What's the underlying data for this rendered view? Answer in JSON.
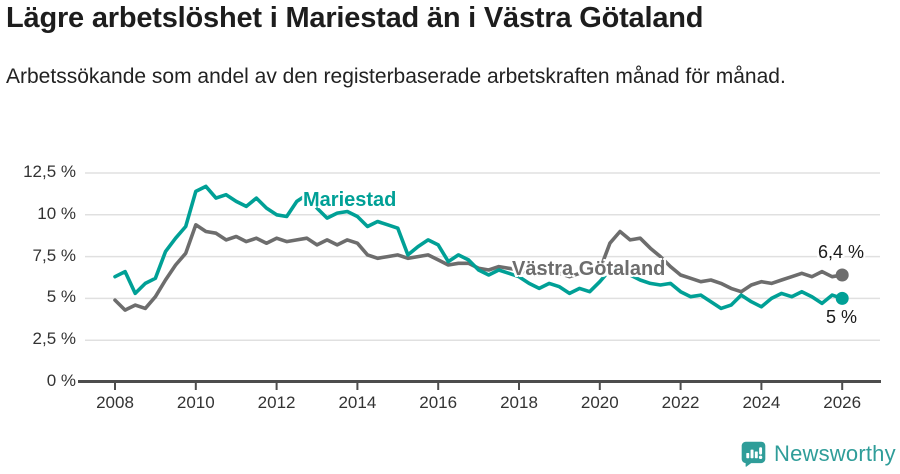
{
  "header": {
    "title": "Lägre arbetslöshet i Mariestad än i Västra Götaland",
    "subtitle": "Arbetssökande som andel av den registerbaserade arbetskraften månad för månad."
  },
  "chart_data": {
    "type": "line",
    "title": "Lägre arbetslöshet i Mariestad än i Västra Götaland",
    "xlabel": "",
    "ylabel": "Arbetssökande som andel av den registerbaserade arbetskraften",
    "unit": "%",
    "ylim": [
      0,
      12.5
    ],
    "xlim": [
      2007.6,
      2027
    ],
    "grid": "horizontal",
    "legend_position": "inline-labels",
    "x": [
      2008,
      2008.25,
      2008.5,
      2008.75,
      2009,
      2009.25,
      2009.5,
      2009.75,
      2010,
      2010.25,
      2010.5,
      2010.75,
      2011,
      2011.25,
      2011.5,
      2011.75,
      2012,
      2012.25,
      2012.5,
      2012.75,
      2013,
      2013.25,
      2013.5,
      2013.75,
      2014,
      2014.25,
      2014.5,
      2014.75,
      2015,
      2015.25,
      2015.5,
      2015.75,
      2016,
      2016.25,
      2016.5,
      2016.75,
      2017,
      2017.25,
      2017.5,
      2017.75,
      2018,
      2018.25,
      2018.5,
      2018.75,
      2019,
      2019.25,
      2019.5,
      2019.75,
      2020,
      2020.25,
      2020.5,
      2020.75,
      2021,
      2021.25,
      2021.5,
      2021.75,
      2022,
      2022.25,
      2022.5,
      2022.75,
      2023,
      2023.25,
      2023.5,
      2023.75,
      2024,
      2024.25,
      2024.5,
      2024.75,
      2025,
      2025.25,
      2025.5,
      2025.75,
      2026
    ],
    "series": [
      {
        "name": "Mariestad",
        "color": "#00a096",
        "end_value": 5.0,
        "end_label": "5 %",
        "values": [
          6.3,
          6.6,
          5.3,
          5.9,
          6.2,
          7.8,
          8.6,
          9.3,
          11.4,
          11.7,
          11.0,
          11.2,
          10.8,
          10.5,
          11.0,
          10.4,
          10.0,
          9.9,
          10.8,
          11.2,
          10.4,
          9.8,
          10.1,
          10.2,
          9.9,
          9.3,
          9.6,
          9.4,
          9.2,
          7.6,
          8.1,
          8.5,
          8.2,
          7.2,
          7.6,
          7.3,
          6.7,
          6.4,
          6.7,
          6.5,
          6.3,
          5.9,
          5.6,
          5.9,
          5.7,
          5.3,
          5.6,
          5.4,
          6.0,
          6.7,
          6.9,
          6.4,
          6.1,
          5.9,
          5.8,
          5.9,
          5.4,
          5.1,
          5.2,
          4.8,
          4.4,
          4.6,
          5.2,
          4.8,
          4.5,
          5.0,
          5.3,
          5.1,
          5.4,
          5.1,
          4.7,
          5.2,
          5.0
        ]
      },
      {
        "name": "Västra Götaland",
        "color": "#6d6d6d",
        "end_value": 6.4,
        "end_label": "6,4 %",
        "values": [
          4.9,
          4.3,
          4.6,
          4.4,
          5.1,
          6.1,
          7.0,
          7.7,
          9.4,
          9.0,
          8.9,
          8.5,
          8.7,
          8.4,
          8.6,
          8.3,
          8.6,
          8.4,
          8.5,
          8.6,
          8.2,
          8.5,
          8.2,
          8.5,
          8.3,
          7.6,
          7.4,
          7.5,
          7.6,
          7.4,
          7.5,
          7.6,
          7.3,
          7.0,
          7.1,
          7.1,
          6.8,
          6.7,
          6.9,
          6.8,
          6.7,
          6.5,
          6.4,
          6.5,
          6.5,
          6.3,
          6.5,
          6.6,
          6.7,
          8.3,
          9.0,
          8.5,
          8.6,
          8.0,
          7.5,
          6.9,
          6.4,
          6.2,
          6.0,
          6.1,
          5.9,
          5.6,
          5.4,
          5.8,
          6.0,
          5.9,
          6.1,
          6.3,
          6.5,
          6.3,
          6.6,
          6.3,
          6.4
        ]
      }
    ],
    "y_ticks": [
      {
        "value": 12.5,
        "label": "12,5 %"
      },
      {
        "value": 10,
        "label": "10 %"
      },
      {
        "value": 7.5,
        "label": "7,5 %"
      },
      {
        "value": 5,
        "label": "5 %"
      },
      {
        "value": 2.5,
        "label": "2,5 %"
      },
      {
        "value": 0,
        "label": "0 %"
      }
    ],
    "x_ticks": [
      {
        "value": 2008,
        "label": "2008"
      },
      {
        "value": 2010,
        "label": "2010"
      },
      {
        "value": 2012,
        "label": "2012"
      },
      {
        "value": 2014,
        "label": "2014"
      },
      {
        "value": 2016,
        "label": "2016"
      },
      {
        "value": 2018,
        "label": "2018"
      },
      {
        "value": 2020,
        "label": "2020"
      },
      {
        "value": 2022,
        "label": "2022"
      },
      {
        "value": 2024,
        "label": "2024"
      },
      {
        "value": 2026,
        "label": "2026"
      }
    ],
    "colors": {
      "mariestad": "#00a096",
      "vastra_gotaland": "#6d6d6d",
      "grid": "#e0e0e0",
      "axis": "#4d4d4d"
    }
  },
  "branding": {
    "logo_text": "Newsworthy",
    "logo_color": "#2f9d99"
  }
}
